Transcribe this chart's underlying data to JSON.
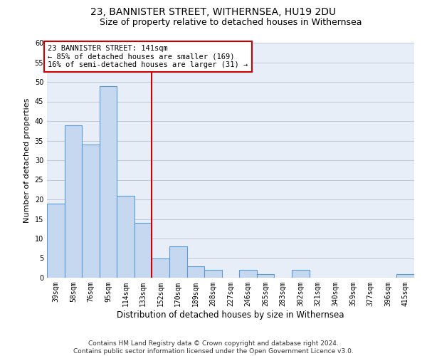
{
  "title": "23, BANNISTER STREET, WITHERNSEA, HU19 2DU",
  "subtitle": "Size of property relative to detached houses in Withernsea",
  "xlabel": "Distribution of detached houses by size in Withernsea",
  "ylabel": "Number of detached properties",
  "bar_labels": [
    "39sqm",
    "58sqm",
    "76sqm",
    "95sqm",
    "114sqm",
    "133sqm",
    "152sqm",
    "170sqm",
    "189sqm",
    "208sqm",
    "227sqm",
    "246sqm",
    "265sqm",
    "283sqm",
    "302sqm",
    "321sqm",
    "340sqm",
    "359sqm",
    "377sqm",
    "396sqm",
    "415sqm"
  ],
  "bar_values": [
    19,
    39,
    34,
    49,
    21,
    14,
    5,
    8,
    3,
    2,
    0,
    2,
    1,
    0,
    2,
    0,
    0,
    0,
    0,
    0,
    1
  ],
  "bar_color": "#c5d8f0",
  "bar_edge_color": "#5b9bd5",
  "annotation_line1": "23 BANNISTER STREET: 141sqm",
  "annotation_line2": "← 85% of detached houses are smaller (169)",
  "annotation_line3": "16% of semi-detached houses are larger (31) →",
  "vline_x": 5.5,
  "vline_color": "#cc0000",
  "ylim": [
    0,
    60
  ],
  "yticks": [
    0,
    5,
    10,
    15,
    20,
    25,
    30,
    35,
    40,
    45,
    50,
    55,
    60
  ],
  "grid_color": "#c0c8d8",
  "bg_color": "#e8eef8",
  "footer_line1": "Contains HM Land Registry data © Crown copyright and database right 2024.",
  "footer_line2": "Contains public sector information licensed under the Open Government Licence v3.0.",
  "title_fontsize": 10,
  "subtitle_fontsize": 9,
  "xlabel_fontsize": 8.5,
  "ylabel_fontsize": 8,
  "annot_fontsize": 7.5,
  "tick_fontsize": 7,
  "footer_fontsize": 6.5
}
